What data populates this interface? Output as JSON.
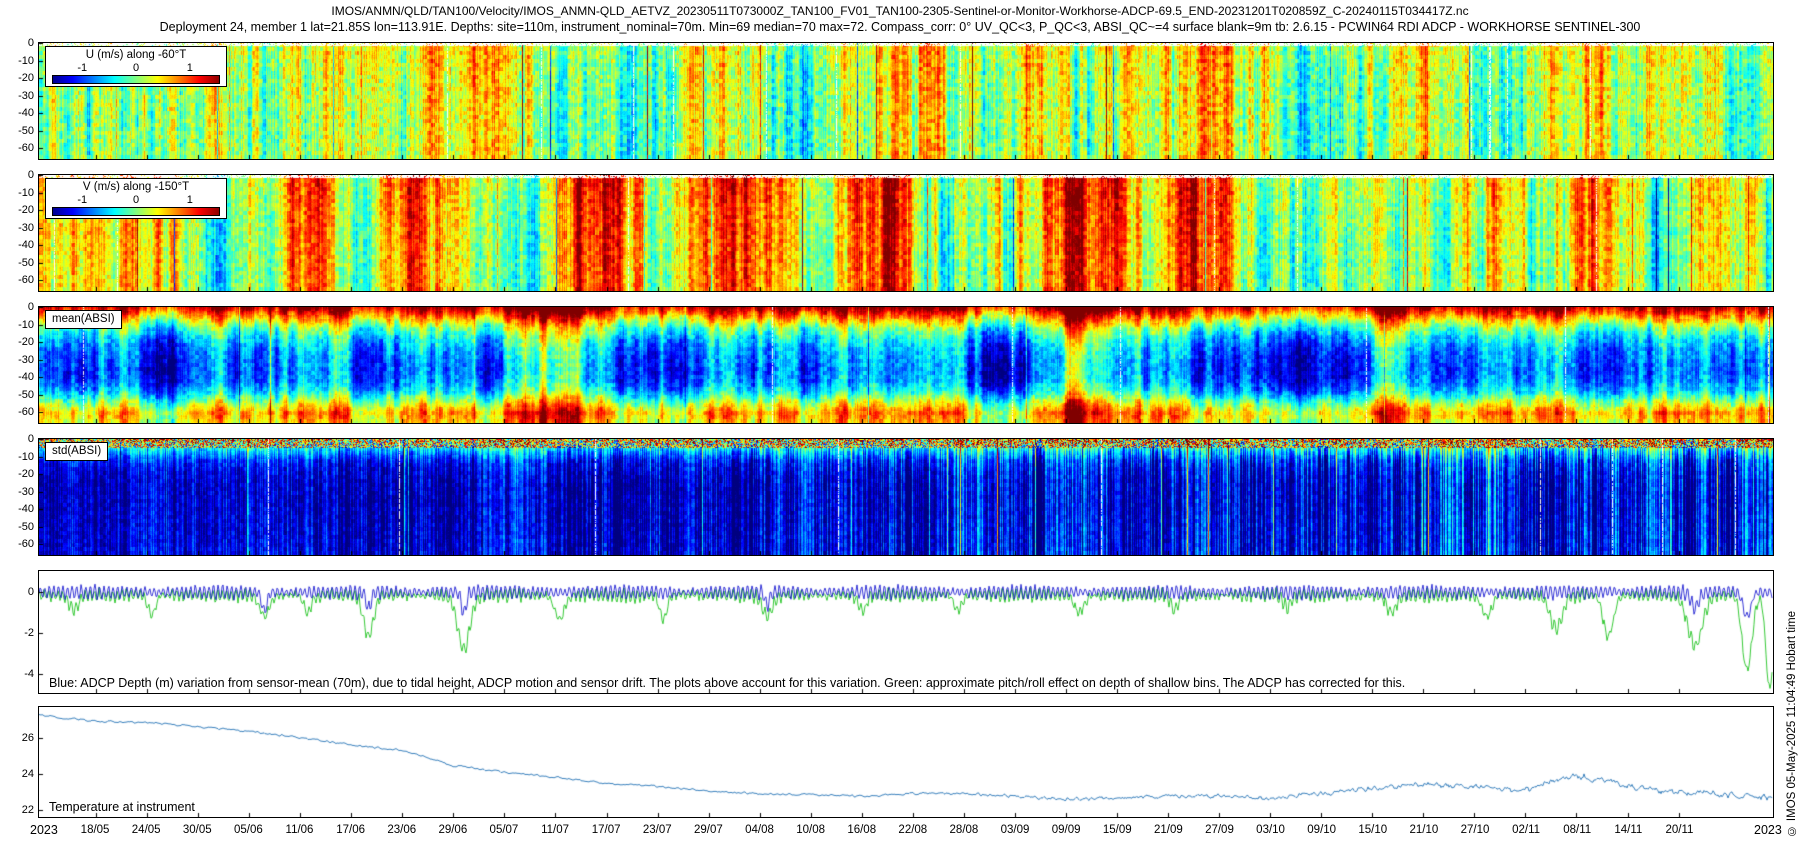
{
  "page": {
    "title_line1": "IMOS/ANMN/QLD/TAN100/Velocity/IMOS_ANMN-QLD_AETVZ_20230511T073000Z_TAN100_FV01_TAN100-2305-Sentinel-or-Monitor-Workhorse-ADCP-69.5_END-20231201T020859Z_C-20240115T034417Z.nc",
    "title_line2": "Deployment 24, member 1 lat=21.85S lon=113.91E. Depths: site=110m, instrument_nominal=70m. Min=69 median=70 max=72. Compass_corr: 0° UV_QC<3, P_QC<3, ABSI_QC~=4 surface blank=9m tb: 2.6.15 - PCWIN64 RDI ADCP - WORKHORSE SENTINEL-300",
    "watermark": "© IMOS 05-May-2025 11:04:49 Hobart time"
  },
  "x_axis": {
    "year_start": "2023",
    "year_end": "2023",
    "first_tick_day": 6.7,
    "tick_spacing_days": 6,
    "total_days": 203.8,
    "tick_labels": [
      "18/05",
      "24/05",
      "30/05",
      "05/06",
      "11/06",
      "17/06",
      "23/06",
      "29/06",
      "05/07",
      "11/07",
      "17/07",
      "23/07",
      "29/07",
      "04/08",
      "10/08",
      "16/08",
      "22/08",
      "28/08",
      "03/09",
      "09/09",
      "15/09",
      "21/09",
      "27/09",
      "03/10",
      "09/10",
      "15/10",
      "21/10",
      "27/10",
      "02/11",
      "08/11",
      "14/11",
      "20/11"
    ]
  },
  "chart_data": [
    {
      "type": "heatmap",
      "label": "U (m/s) along -60°T",
      "colorbar_ticks": [
        "-1",
        "0",
        "1"
      ],
      "colormap": "jet",
      "clim": [
        -1,
        1
      ],
      "y_ticks": [
        0,
        -10,
        -20,
        -30,
        -40,
        -50,
        -60
      ],
      "y_range": [
        0,
        -66
      ],
      "columns": [
        0.12,
        0.06,
        0.1,
        0.16,
        0.08,
        0.02,
        0.1,
        0.18,
        0.12,
        0.05,
        0.1,
        0.14,
        0.06,
        0.0,
        0.08,
        0.15,
        0.1,
        0.04,
        0.12,
        0.16,
        0.08,
        0.03,
        0.1,
        0.15,
        0.1,
        0.02,
        0.08,
        0.14,
        0.18,
        0.1,
        0.04,
        0.1,
        0.16,
        0.08,
        0.0,
        0.06,
        0.12,
        0.16,
        0.1,
        0.05,
        0.1,
        0.02,
        0.14,
        0.1,
        0.06,
        0.12,
        0.08,
        0.1
      ],
      "depth_profile": [
        0.06,
        0.05,
        0.03,
        0.01,
        0,
        -0.01,
        -0.02,
        -0.03,
        -0.04,
        -0.04,
        -0.03,
        -0.02
      ],
      "streaks": {
        "hi": 0.16,
        "mid": 0.3,
        "low": 0.22,
        "spike": 1.1,
        "spike_prob": 0.012
      },
      "noise2d": 0.16,
      "top_gap_rows": 3,
      "seed": 11
    },
    {
      "type": "heatmap",
      "label": "V (m/s) along -150°T",
      "colorbar_ticks": [
        "-1",
        "0",
        "1"
      ],
      "colormap": "jet",
      "clim": [
        -1,
        1
      ],
      "y_ticks": [
        0,
        -10,
        -20,
        -30,
        -40,
        -50,
        -60
      ],
      "y_range": [
        0,
        -66
      ],
      "columns": [
        0.2,
        0.1,
        0.3,
        0.5,
        0.2,
        0.0,
        0.4,
        0.55,
        0.3,
        0.1,
        0.5,
        0.4,
        0.1,
        -0.1,
        0.2,
        0.5,
        0.3,
        0.0,
        0.3,
        0.55,
        0.4,
        0.1,
        0.3,
        0.5,
        0.2,
        0.0,
        0.2,
        0.4,
        0.55,
        0.3,
        0.1,
        0.4,
        0.5,
        0.2,
        0.0,
        0.3,
        0.5,
        0.3,
        0.1,
        0.2,
        0.45,
        0.1,
        0.5,
        0.3,
        0.0,
        0.2,
        0.45,
        0.25
      ],
      "depth_profile": [
        0.05,
        0.04,
        0.02,
        0,
        -0.01,
        -0.02,
        -0.03,
        -0.04,
        -0.05,
        -0.06,
        -0.06,
        -0.05
      ],
      "streaks": {
        "hi": 0.14,
        "mid": 0.32,
        "low": 0.38,
        "spike": 1.0,
        "spike_prob": 0.01
      },
      "noise2d": 0.14,
      "top_gap_rows": 3,
      "seed": 23
    },
    {
      "type": "heatmap",
      "label": "mean(ABSI)",
      "colormap": "jet",
      "y_ticks": [
        0,
        -10,
        -20,
        -30,
        -40,
        -50,
        -60
      ],
      "y_range": [
        0,
        -66
      ],
      "columns": [
        0.1,
        -0.05,
        0.08,
        -0.1,
        0.05,
        0.15,
        -0.08,
        0.0,
        0.12,
        -0.12,
        0.04,
        0.1,
        -0.05,
        0.15,
        0.0,
        -0.1,
        0.08,
        0.12,
        -0.06,
        0.02,
        0.1,
        -0.1,
        0.05,
        0.12,
        -0.04,
        0.08,
        -0.12,
        0.0,
        0.1,
        0.05,
        -0.08,
        0.12,
        0.0,
        -0.1,
        0.06,
        0.1,
        -0.05,
        0.02,
        0.12,
        -0.08,
        0.04,
        0.1,
        0.0,
        -0.1,
        0.08,
        0.05,
        -0.06,
        0.1
      ],
      "depth_profile": [
        0.95,
        0.45,
        0.0,
        -0.25,
        -0.4,
        -0.47,
        -0.5,
        -0.45,
        -0.25,
        0.15,
        0.5,
        0.35
      ],
      "streaks": {
        "hi": 0.1,
        "mid": 0.26,
        "low": 0.4,
        "spike": 0.7,
        "spike_prob": 0.01
      },
      "noise2d": 0.12,
      "seed": 37
    },
    {
      "type": "heatmap",
      "label": "std(ABSI)",
      "colormap": "jet",
      "y_ticks": [
        0,
        -10,
        -20,
        -30,
        -40,
        -50,
        -60
      ],
      "y_range": [
        0,
        -66
      ],
      "columns": [
        0,
        0.05,
        -0.03,
        0.08,
        0,
        0.04,
        -0.02,
        0.1,
        0.02,
        0,
        0.06,
        -0.03,
        0.04,
        0.1,
        0,
        0.05,
        -0.02,
        0.08,
        0.03,
        0,
        0.06,
        0.1,
        -0.03,
        0.05,
        0,
        0.08,
        0.02,
        -0.02,
        0.1,
        0.04,
        0,
        0.06,
        0.12,
        0.02,
        -0.03,
        0.08,
        0.05,
        0,
        0.1,
        0.15,
        0.04,
        0.08,
        0.12,
        0.06,
        0.15,
        0.1,
        0.08,
        0.12
      ],
      "depth_profile": [
        0.1,
        -0.35,
        -0.7,
        -0.82,
        -0.87,
        -0.88,
        -0.88,
        -0.87,
        -0.86,
        -0.85,
        -0.84,
        -0.83
      ],
      "streaks": {
        "hi": 0.28,
        "mid": 0.18,
        "low": 0.1,
        "spike": 0.9,
        "spike_prob": 0.03
      },
      "noise2d": 0.1,
      "top_speckle_rows": 9,
      "right_boost": true,
      "seed": 51
    },
    {
      "type": "line",
      "note": "Blue: ADCP Depth (m) variation from sensor-mean (70m), due to tidal height, ADCP motion and sensor drift. The plots above account for this variation. Green: approximate pitch/roll effect on depth of shallow bins. The ADCP has corrected for this.",
      "y_ticks": [
        0,
        -2,
        -4
      ],
      "y_range": [
        1.0,
        -4.9
      ],
      "tide": {
        "cycles": 380,
        "amplitude": 0.33,
        "spring_neap_cycles": 13
      },
      "series": [
        {
          "name": "ADCP depth variation from sensor-mean (70 m)",
          "color": "#0000cc"
        },
        {
          "name": "approximate pitch/roll effect on depth of shallow bins",
          "color": "#00bb00"
        }
      ],
      "blue_spikes": [
        {
          "x": 0.13,
          "d": 0.9,
          "w": 0.002
        },
        {
          "x": 0.19,
          "d": 0.8,
          "w": 0.002
        },
        {
          "x": 0.245,
          "d": 1.0,
          "w": 0.002
        },
        {
          "x": 0.42,
          "d": 0.6,
          "w": 0.002
        },
        {
          "x": 0.955,
          "d": 0.8,
          "w": 0.003
        },
        {
          "x": 0.985,
          "d": 1.2,
          "w": 0.003
        }
      ],
      "green_spikes": [
        {
          "x": 0.02,
          "d": 0.7,
          "w": 0.004
        },
        {
          "x": 0.065,
          "d": 0.9,
          "w": 0.003
        },
        {
          "x": 0.13,
          "d": 1.0,
          "w": 0.004
        },
        {
          "x": 0.155,
          "d": 0.8,
          "w": 0.003
        },
        {
          "x": 0.19,
          "d": 2.0,
          "w": 0.004
        },
        {
          "x": 0.245,
          "d": 2.6,
          "w": 0.005
        },
        {
          "x": 0.3,
          "d": 1.2,
          "w": 0.004
        },
        {
          "x": 0.36,
          "d": 1.1,
          "w": 0.003
        },
        {
          "x": 0.42,
          "d": 1.0,
          "w": 0.004
        },
        {
          "x": 0.475,
          "d": 0.8,
          "w": 0.003
        },
        {
          "x": 0.53,
          "d": 0.7,
          "w": 0.003
        },
        {
          "x": 0.6,
          "d": 0.8,
          "w": 0.004
        },
        {
          "x": 0.655,
          "d": 0.7,
          "w": 0.003
        },
        {
          "x": 0.72,
          "d": 0.6,
          "w": 0.003
        },
        {
          "x": 0.78,
          "d": 0.8,
          "w": 0.004
        },
        {
          "x": 0.835,
          "d": 1.0,
          "w": 0.004
        },
        {
          "x": 0.875,
          "d": 1.6,
          "w": 0.005
        },
        {
          "x": 0.905,
          "d": 2.0,
          "w": 0.004
        },
        {
          "x": 0.955,
          "d": 2.4,
          "w": 0.006
        },
        {
          "x": 0.985,
          "d": 3.6,
          "w": 0.004
        },
        {
          "x": 0.998,
          "d": 4.5,
          "w": 0.003
        }
      ]
    },
    {
      "type": "line",
      "label": "Temperature at instrument",
      "y_ticks": [
        26,
        24,
        22
      ],
      "y_range": [
        27.7,
        21.6
      ],
      "series": [
        {
          "name": "Temperature at instrument (°C)",
          "color": "#2070b4",
          "control_values": [
            27.25,
            26.9,
            26.85,
            26.6,
            26.35,
            26.0,
            25.6,
            25.3,
            24.45,
            24.1,
            23.8,
            23.45,
            23.3,
            23.05,
            22.9,
            22.85,
            22.75,
            22.9,
            22.9,
            22.75,
            22.6,
            22.65,
            22.75,
            22.8,
            22.6,
            22.9,
            23.2,
            23.4,
            23.3,
            23.1,
            23.9,
            23.3,
            22.95,
            22.7
          ]
        }
      ]
    }
  ]
}
